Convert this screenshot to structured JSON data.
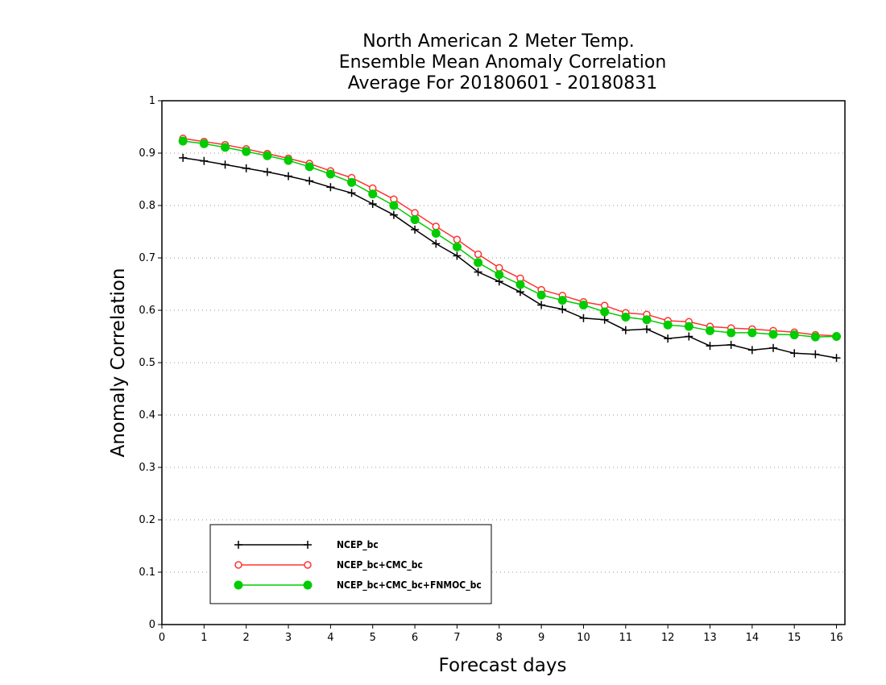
{
  "chart_data": {
    "type": "line",
    "title": [
      "North American 2 Meter Temp.",
      "Ensemble Mean Anomaly Correlation",
      "Average For 20180601 - 20180831"
    ],
    "xlabel": "Forecast days",
    "ylabel": "Anomaly Correlation",
    "xlim": [
      0,
      16.2
    ],
    "ylim": [
      0,
      1
    ],
    "xticks": [
      0,
      1,
      2,
      3,
      4,
      5,
      6,
      7,
      8,
      9,
      10,
      11,
      12,
      13,
      14,
      15,
      16
    ],
    "yticks": [
      0,
      0.1,
      0.2,
      0.3,
      0.4,
      0.5,
      0.6,
      0.7,
      0.8,
      0.9,
      1
    ],
    "grid": "horizontal-dotted",
    "legend_position": "bottom-left",
    "x": [
      0.5,
      1,
      1.5,
      2,
      2.5,
      3,
      3.5,
      4,
      4.5,
      5,
      5.5,
      6,
      6.5,
      7,
      7.5,
      8,
      8.5,
      9,
      9.5,
      10,
      10.5,
      11,
      11.5,
      12,
      12.5,
      13,
      13.5,
      14,
      14.5,
      15,
      15.5,
      16
    ],
    "series": [
      {
        "name": "NCEP_bc",
        "color": "#000000",
        "marker": "plus",
        "values": [
          0.891,
          0.885,
          0.878,
          0.871,
          0.864,
          0.856,
          0.847,
          0.835,
          0.824,
          0.803,
          0.782,
          0.754,
          0.727,
          0.704,
          0.673,
          0.655,
          0.635,
          0.61,
          0.602,
          0.585,
          0.582,
          0.562,
          0.564,
          0.546,
          0.55,
          0.532,
          0.534,
          0.524,
          0.528,
          0.518,
          0.516,
          0.509
        ]
      },
      {
        "name": "NCEP_bc+CMC_bc",
        "color": "#ff3333",
        "marker": "open-circle",
        "values": [
          0.928,
          0.922,
          0.916,
          0.908,
          0.899,
          0.89,
          0.88,
          0.866,
          0.853,
          0.833,
          0.812,
          0.786,
          0.76,
          0.735,
          0.707,
          0.681,
          0.661,
          0.639,
          0.628,
          0.616,
          0.609,
          0.595,
          0.592,
          0.58,
          0.578,
          0.569,
          0.566,
          0.564,
          0.561,
          0.558,
          0.553,
          0.551
        ]
      },
      {
        "name": "NCEP_bc+CMC_bc+FNMOC_bc",
        "color": "#00cc00",
        "marker": "filled-circle",
        "values": [
          0.923,
          0.918,
          0.911,
          0.903,
          0.895,
          0.886,
          0.874,
          0.86,
          0.844,
          0.822,
          0.8,
          0.773,
          0.747,
          0.721,
          0.691,
          0.668,
          0.649,
          0.629,
          0.619,
          0.61,
          0.597,
          0.587,
          0.582,
          0.572,
          0.569,
          0.561,
          0.557,
          0.557,
          0.554,
          0.553,
          0.549,
          0.55
        ]
      }
    ]
  }
}
